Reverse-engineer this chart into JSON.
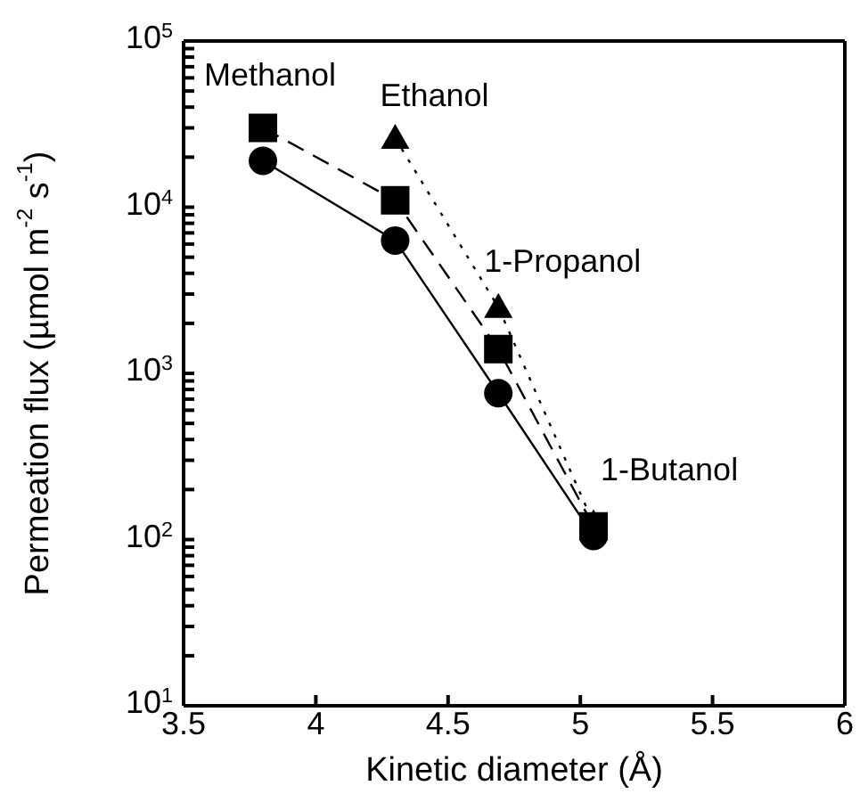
{
  "chart_data": {
    "type": "line",
    "xlabel": "Kinetic diameter (Å)",
    "ylabel": "Permeation flux (µmol m$^{-2}$ s$^{-1}$)",
    "log": "y",
    "grid": false,
    "legend": false,
    "xlim": [
      3.5,
      6
    ],
    "xticks": [
      3.5,
      4,
      4.5,
      5,
      5.5,
      6
    ],
    "ylim": [
      10,
      100000
    ],
    "yticks": [
      {
        "value": 10,
        "label": "10$^{1}$"
      },
      {
        "value": 20,
        "label": null
      },
      {
        "value": 30,
        "label": null
      },
      {
        "value": 40,
        "label": null
      },
      {
        "value": 50,
        "label": null
      },
      {
        "value": 60,
        "label": null
      },
      {
        "value": 70,
        "label": null
      },
      {
        "value": 80,
        "label": null
      },
      {
        "value": 90,
        "label": null
      },
      {
        "value": 100,
        "label": "10$^{2}$"
      },
      {
        "value": 200,
        "label": null
      },
      {
        "value": 300,
        "label": null
      },
      {
        "value": 400,
        "label": null
      },
      {
        "value": 500,
        "label": null
      },
      {
        "value": 600,
        "label": null
      },
      {
        "value": 700,
        "label": null
      },
      {
        "value": 800,
        "label": null
      },
      {
        "value": 900,
        "label": null
      },
      {
        "value": 1000,
        "label": "10$^{3}$"
      },
      {
        "value": 2000,
        "label": null
      },
      {
        "value": 3000,
        "label": null
      },
      {
        "value": 4000,
        "label": null
      },
      {
        "value": 5000,
        "label": null
      },
      {
        "value": 6000,
        "label": null
      },
      {
        "value": 7000,
        "label": null
      },
      {
        "value": 8000,
        "label": null
      },
      {
        "value": 9000,
        "label": null
      },
      {
        "value": 10000,
        "label": "10$^{4}$"
      },
      {
        "value": 20000,
        "label": null
      },
      {
        "value": 30000,
        "label": null
      },
      {
        "value": 40000,
        "label": null
      },
      {
        "value": 50000,
        "label": null
      },
      {
        "value": 60000,
        "label": null
      },
      {
        "value": 70000,
        "label": null
      },
      {
        "value": 80000,
        "label": null
      },
      {
        "value": 90000,
        "label": null
      },
      {
        "value": 100000,
        "label": "10$^{5}$"
      }
    ],
    "x": [
      3.8,
      4.3,
      4.69,
      5.05
    ],
    "series": [
      {
        "color": "#000000",
        "marker": "circle",
        "line_style": "solid",
        "values": [
          19000,
          6300,
          760,
          105
        ]
      },
      {
        "color": "#000000",
        "marker": "square",
        "line_style": "dashed",
        "values": [
          30000,
          11000,
          1400,
          120
        ]
      },
      {
        "color": "#000000",
        "marker": "triangle",
        "line_style": "dotted",
        "x": [
          4.3,
          4.69,
          5.05
        ],
        "values": [
          26000,
          2500,
          125
        ]
      }
    ],
    "annotations": [
      "Methanol",
      "Ethanol",
      "1-Propanol",
      "1-Butanol"
    ]
  }
}
